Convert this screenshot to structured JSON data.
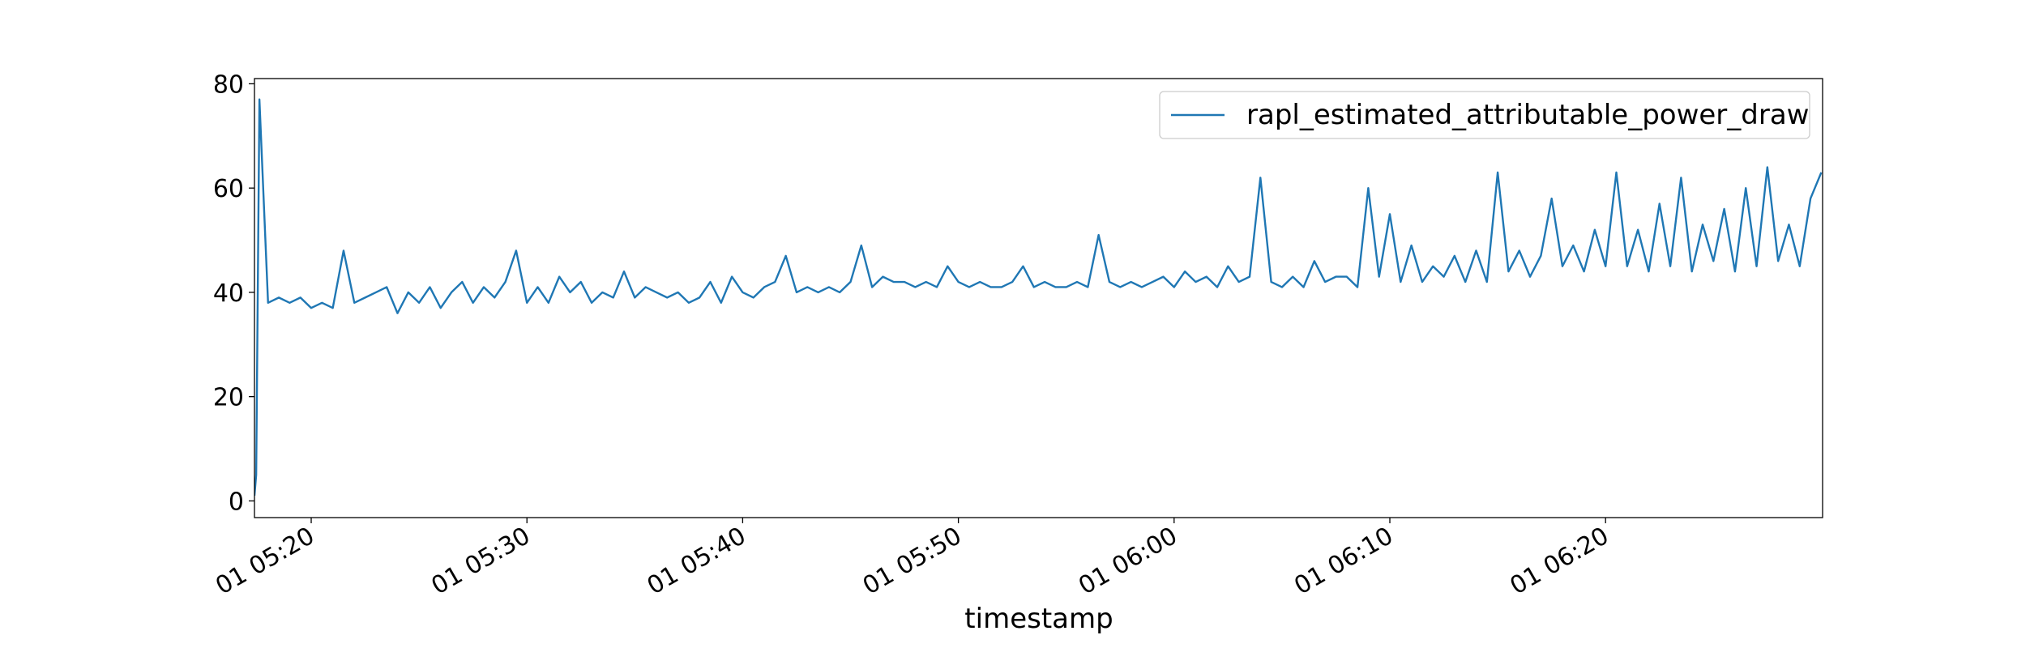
{
  "chart_data": {
    "type": "line",
    "x_label": "timestamp",
    "x": [
      17.37,
      17.45,
      17.6,
      18.0,
      18.5,
      19.0,
      19.5,
      20.0,
      20.5,
      21.0,
      21.5,
      22.0,
      22.5,
      23.0,
      23.5,
      24.0,
      24.5,
      25.0,
      25.5,
      26.0,
      26.5,
      27.0,
      27.5,
      28.0,
      28.5,
      29.0,
      29.5,
      30.0,
      30.5,
      31.0,
      31.5,
      32.0,
      32.5,
      33.0,
      33.5,
      34.0,
      34.5,
      35.0,
      35.5,
      36.0,
      36.5,
      37.0,
      37.5,
      38.0,
      38.5,
      39.0,
      39.5,
      40.0,
      40.5,
      41.0,
      41.5,
      42.0,
      42.5,
      43.0,
      43.5,
      44.0,
      44.5,
      45.0,
      45.5,
      46.0,
      46.5,
      47.0,
      47.5,
      48.0,
      48.5,
      49.0,
      49.5,
      50.0,
      50.5,
      51.0,
      51.5,
      52.0,
      52.5,
      53.0,
      53.5,
      54.0,
      54.5,
      55.0,
      55.5,
      56.0,
      56.5,
      57.0,
      57.5,
      58.0,
      58.5,
      59.0,
      59.5,
      60.0,
      60.5,
      61.0,
      61.5,
      62.0,
      62.5,
      63.0,
      63.5,
      64.0,
      64.5,
      65.0,
      65.5,
      66.0,
      66.5,
      67.0,
      67.5,
      68.0,
      68.5,
      69.0,
      69.5,
      70.0,
      70.5,
      71.0,
      71.5,
      72.0,
      72.5,
      73.0,
      73.5,
      74.0,
      74.5,
      75.0,
      75.5,
      76.0,
      76.5,
      77.0,
      77.5,
      78.0,
      78.5,
      79.0,
      79.5,
      80.0,
      80.5,
      81.0,
      81.5,
      82.0,
      82.5,
      83.0,
      83.5,
      84.0,
      84.5,
      85.0,
      85.5,
      86.0,
      86.5,
      87.0,
      87.5,
      88.0,
      88.5,
      89.0,
      89.5,
      90.0
    ],
    "series": [
      {
        "name": "rapl_estimated_attributable_power_draw",
        "color": "#1f77b4",
        "values": [
          1,
          5,
          77,
          38,
          39,
          38,
          39,
          37,
          38,
          37,
          48,
          38,
          39,
          40,
          41,
          36,
          40,
          38,
          41,
          37,
          40,
          42,
          38,
          41,
          39,
          42,
          48,
          38,
          41,
          38,
          43,
          40,
          42,
          38,
          40,
          39,
          44,
          39,
          41,
          40,
          39,
          40,
          38,
          39,
          42,
          38,
          43,
          40,
          39,
          41,
          42,
          47,
          40,
          41,
          40,
          41,
          40,
          42,
          49,
          41,
          43,
          42,
          42,
          41,
          42,
          41,
          45,
          42,
          41,
          42,
          41,
          41,
          42,
          45,
          41,
          42,
          41,
          41,
          42,
          41,
          51,
          42,
          41,
          42,
          41,
          42,
          43,
          41,
          44,
          42,
          43,
          41,
          45,
          42,
          43,
          62,
          42,
          41,
          43,
          41,
          46,
          42,
          43,
          43,
          41,
          60,
          43,
          55,
          42,
          49,
          42,
          45,
          43,
          47,
          42,
          48,
          42,
          63,
          44,
          48,
          43,
          47,
          58,
          45,
          49,
          44,
          52,
          45,
          63,
          45,
          52,
          44,
          57,
          45,
          62,
          44,
          53,
          46,
          56,
          44,
          60,
          45,
          64,
          46,
          53,
          45,
          58,
          63
        ]
      }
    ],
    "xlim": [
      17.37,
      90.06
    ],
    "xticks": [
      {
        "value": 20,
        "label": "01 05:20"
      },
      {
        "value": 30,
        "label": "01 05:30"
      },
      {
        "value": 40,
        "label": "01 05:40"
      },
      {
        "value": 50,
        "label": "01 05:50"
      },
      {
        "value": 60,
        "label": "01 06:00"
      },
      {
        "value": 70,
        "label": "01 06:10"
      },
      {
        "value": 80,
        "label": "01 06:20"
      }
    ],
    "ylim": [
      -3.2,
      81
    ],
    "yticks": [
      0,
      20,
      40,
      60,
      80
    ],
    "grid": false,
    "legend": "upper right"
  }
}
